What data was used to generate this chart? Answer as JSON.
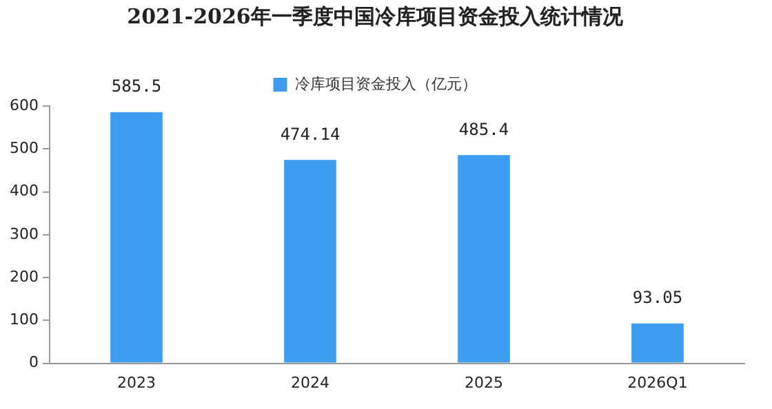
{
  "chart_data": {
    "type": "bar",
    "title": "2021-2026年一季度中国冷库项目资金投入统计情况",
    "categories": [
      "2023",
      "2024",
      "2025",
      "2026Q1"
    ],
    "series": [
      {
        "name": "冷库项目资金投入（亿元）",
        "color": "#3d9cf0",
        "values": [
          585.5,
          474.14,
          485.4,
          93.05
        ]
      }
    ],
    "ylim": [
      0,
      600
    ],
    "yticks": [
      0,
      100,
      200,
      300,
      400,
      500,
      600
    ],
    "grid": false,
    "legend": "top",
    "data_labels": true
  }
}
